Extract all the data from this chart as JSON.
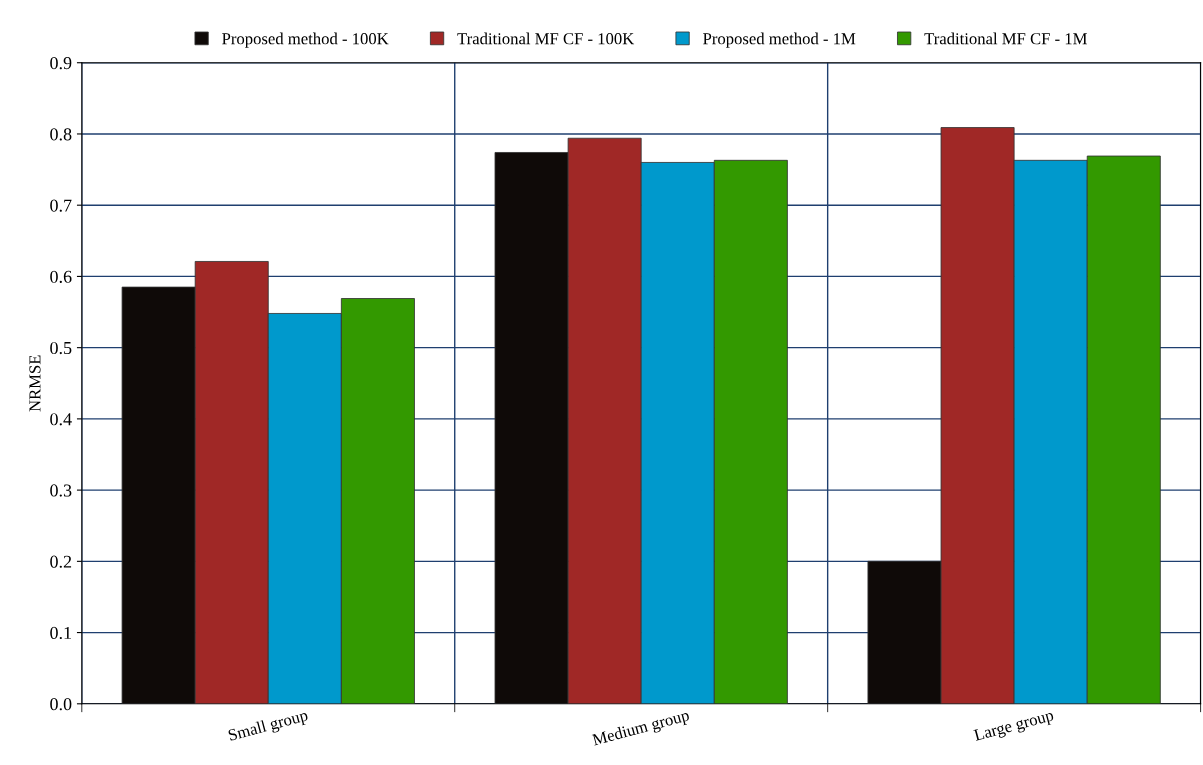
{
  "chart_data": {
    "type": "bar",
    "ylabel": "NRMSE",
    "categories": [
      "Small group",
      "Medium group",
      "Large group"
    ],
    "series": [
      {
        "name": "Proposed method - 100K",
        "color": "#0f0a08",
        "values": [
          0.585,
          0.774,
          0.2
        ]
      },
      {
        "name": "Traditional MF CF - 100K",
        "color": "#a02826",
        "values": [
          0.621,
          0.794,
          0.809
        ]
      },
      {
        "name": "Proposed method - 1M",
        "color": "#0099cc",
        "values": [
          0.548,
          0.76,
          0.763
        ]
      },
      {
        "name": "Traditional MF CF - 1M",
        "color": "#339900",
        "values": [
          0.569,
          0.763,
          0.769
        ]
      }
    ],
    "ylim": [
      0,
      0.9
    ],
    "yticks": [
      {
        "value": 0,
        "label": "0.0"
      },
      0.1,
      0.2,
      0.3,
      0.4,
      0.5,
      0.6,
      0.7,
      0.8,
      0.9
    ],
    "grid": true,
    "legend": "top"
  }
}
